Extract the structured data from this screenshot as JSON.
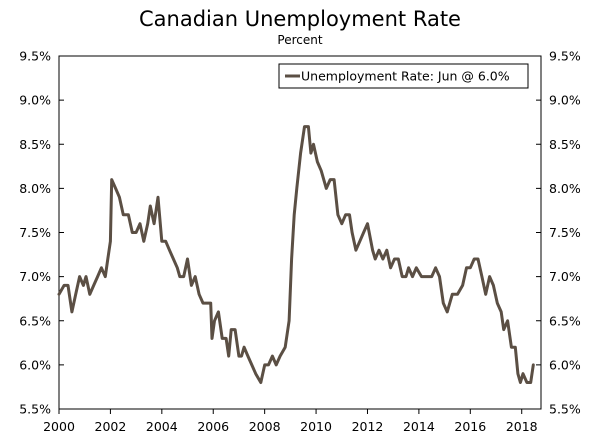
{
  "chart_data": {
    "type": "line",
    "title": "Canadian Unemployment Rate",
    "subtitle": "Percent",
    "xlabel": "",
    "ylabel": "",
    "series": [
      {
        "name": "Unemployment Rate: Jun @ 6.0%",
        "color": "#5b4f44",
        "points": [
          [
            2000.0,
            6.8
          ],
          [
            2000.2,
            6.9
          ],
          [
            2000.35,
            6.9
          ],
          [
            2000.5,
            6.6
          ],
          [
            2000.65,
            6.8
          ],
          [
            2000.8,
            7.0
          ],
          [
            2000.95,
            6.9
          ],
          [
            2001.05,
            7.0
          ],
          [
            2001.2,
            6.8
          ],
          [
            2001.35,
            6.9
          ],
          [
            2001.5,
            7.0
          ],
          [
            2001.65,
            7.1
          ],
          [
            2001.8,
            7.0
          ],
          [
            2001.9,
            7.2
          ],
          [
            2002.0,
            7.4
          ],
          [
            2002.05,
            8.1
          ],
          [
            2002.2,
            8.0
          ],
          [
            2002.35,
            7.9
          ],
          [
            2002.5,
            7.7
          ],
          [
            2002.7,
            7.7
          ],
          [
            2002.85,
            7.5
          ],
          [
            2003.0,
            7.5
          ],
          [
            2003.15,
            7.6
          ],
          [
            2003.3,
            7.4
          ],
          [
            2003.45,
            7.6
          ],
          [
            2003.55,
            7.8
          ],
          [
            2003.7,
            7.6
          ],
          [
            2003.85,
            7.9
          ],
          [
            2004.0,
            7.4
          ],
          [
            2004.15,
            7.4
          ],
          [
            2004.3,
            7.3
          ],
          [
            2004.45,
            7.2
          ],
          [
            2004.6,
            7.1
          ],
          [
            2004.7,
            7.0
          ],
          [
            2004.85,
            7.0
          ],
          [
            2005.0,
            7.2
          ],
          [
            2005.15,
            6.9
          ],
          [
            2005.3,
            7.0
          ],
          [
            2005.45,
            6.8
          ],
          [
            2005.6,
            6.7
          ],
          [
            2005.75,
            6.7
          ],
          [
            2005.9,
            6.7
          ],
          [
            2005.95,
            6.3
          ],
          [
            2006.05,
            6.5
          ],
          [
            2006.2,
            6.6
          ],
          [
            2006.35,
            6.3
          ],
          [
            2006.5,
            6.3
          ],
          [
            2006.6,
            6.1
          ],
          [
            2006.7,
            6.4
          ],
          [
            2006.85,
            6.4
          ],
          [
            2007.0,
            6.1
          ],
          [
            2007.1,
            6.1
          ],
          [
            2007.2,
            6.2
          ],
          [
            2007.35,
            6.1
          ],
          [
            2007.5,
            6.0
          ],
          [
            2007.65,
            5.9
          ],
          [
            2007.85,
            5.8
          ],
          [
            2008.0,
            6.0
          ],
          [
            2008.15,
            6.0
          ],
          [
            2008.3,
            6.1
          ],
          [
            2008.45,
            6.0
          ],
          [
            2008.6,
            6.1
          ],
          [
            2008.8,
            6.2
          ],
          [
            2008.95,
            6.5
          ],
          [
            2009.05,
            7.2
          ],
          [
            2009.15,
            7.7
          ],
          [
            2009.25,
            8.0
          ],
          [
            2009.4,
            8.4
          ],
          [
            2009.55,
            8.7
          ],
          [
            2009.7,
            8.7
          ],
          [
            2009.8,
            8.4
          ],
          [
            2009.9,
            8.5
          ],
          [
            2010.05,
            8.3
          ],
          [
            2010.2,
            8.2
          ],
          [
            2010.4,
            8.0
          ],
          [
            2010.55,
            8.1
          ],
          [
            2010.7,
            8.1
          ],
          [
            2010.85,
            7.7
          ],
          [
            2011.0,
            7.6
          ],
          [
            2011.15,
            7.7
          ],
          [
            2011.3,
            7.7
          ],
          [
            2011.4,
            7.5
          ],
          [
            2011.55,
            7.3
          ],
          [
            2011.7,
            7.4
          ],
          [
            2011.85,
            7.5
          ],
          [
            2012.0,
            7.6
          ],
          [
            2012.2,
            7.3
          ],
          [
            2012.3,
            7.2
          ],
          [
            2012.45,
            7.3
          ],
          [
            2012.6,
            7.2
          ],
          [
            2012.75,
            7.3
          ],
          [
            2012.9,
            7.1
          ],
          [
            2013.05,
            7.2
          ],
          [
            2013.2,
            7.2
          ],
          [
            2013.35,
            7.0
          ],
          [
            2013.5,
            7.0
          ],
          [
            2013.6,
            7.1
          ],
          [
            2013.75,
            7.0
          ],
          [
            2013.9,
            7.1
          ],
          [
            2014.1,
            7.0
          ],
          [
            2014.3,
            7.0
          ],
          [
            2014.5,
            7.0
          ],
          [
            2014.65,
            7.1
          ],
          [
            2014.8,
            7.0
          ],
          [
            2014.95,
            6.7
          ],
          [
            2015.1,
            6.6
          ],
          [
            2015.3,
            6.8
          ],
          [
            2015.5,
            6.8
          ],
          [
            2015.7,
            6.9
          ],
          [
            2015.85,
            7.1
          ],
          [
            2016.0,
            7.1
          ],
          [
            2016.15,
            7.2
          ],
          [
            2016.3,
            7.2
          ],
          [
            2016.45,
            7.0
          ],
          [
            2016.6,
            6.8
          ],
          [
            2016.75,
            7.0
          ],
          [
            2016.9,
            6.9
          ],
          [
            2017.05,
            6.7
          ],
          [
            2017.2,
            6.6
          ],
          [
            2017.3,
            6.4
          ],
          [
            2017.45,
            6.5
          ],
          [
            2017.6,
            6.2
          ],
          [
            2017.75,
            6.2
          ],
          [
            2017.85,
            5.9
          ],
          [
            2017.95,
            5.8
          ],
          [
            2018.05,
            5.9
          ],
          [
            2018.2,
            5.8
          ],
          [
            2018.35,
            5.8
          ],
          [
            2018.45,
            6.0
          ]
        ]
      }
    ],
    "x_ticks": [
      "2000",
      "2002",
      "2004",
      "2006",
      "2008",
      "2010",
      "2012",
      "2014",
      "2016",
      "2018"
    ],
    "y_ticks": [
      "5.5%",
      "6.0%",
      "6.5%",
      "7.0%",
      "7.5%",
      "8.0%",
      "8.5%",
      "9.0%",
      "9.5%"
    ],
    "xlim": [
      2000,
      2018.75
    ],
    "ylim": [
      5.5,
      9.5
    ],
    "y_axes": "left-and-right",
    "grid": false,
    "legend_position": "top-right"
  }
}
